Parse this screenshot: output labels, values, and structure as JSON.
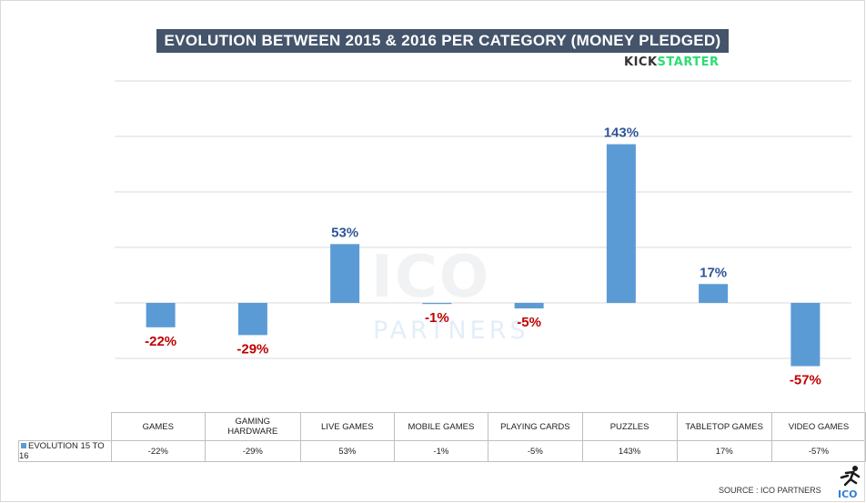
{
  "title": "EVOLUTION BETWEEN 2015 & 2016 PER CATEGORY (MONEY PLEDGED)",
  "brand": {
    "part1": "KICK",
    "part2": "STARTER",
    "color2": "#2bde73"
  },
  "watermark": {
    "line1": "ICO",
    "line2": "PARTNERS"
  },
  "source": "SOURCE : ICO PARTNERS",
  "logo_text": "ICO",
  "colors": {
    "bar": "#5b9bd5",
    "positive_label": "#2e5597",
    "negative_label": "#c00000",
    "title_bg": "#44546a"
  },
  "chart_data": {
    "type": "bar",
    "categories": [
      "GAMES",
      "GAMING HARDWARE",
      "LIVE GAMES",
      "MOBILE GAMES",
      "PLAYING CARDS",
      "PUZZLES",
      "TABLETOP GAMES",
      "VIDEO GAMES"
    ],
    "series": [
      {
        "name": "EVOLUTION 15 TO 16",
        "values": [
          -22,
          -29,
          53,
          -1,
          -5,
          143,
          17,
          -57
        ]
      }
    ],
    "data_labels": [
      "-22%",
      "-29%",
      "53%",
      "-1%",
      "-5%",
      "143%",
      "17%",
      "-57%"
    ],
    "ylim": [
      -100,
      200
    ],
    "grid": true,
    "legend": "data-table"
  }
}
